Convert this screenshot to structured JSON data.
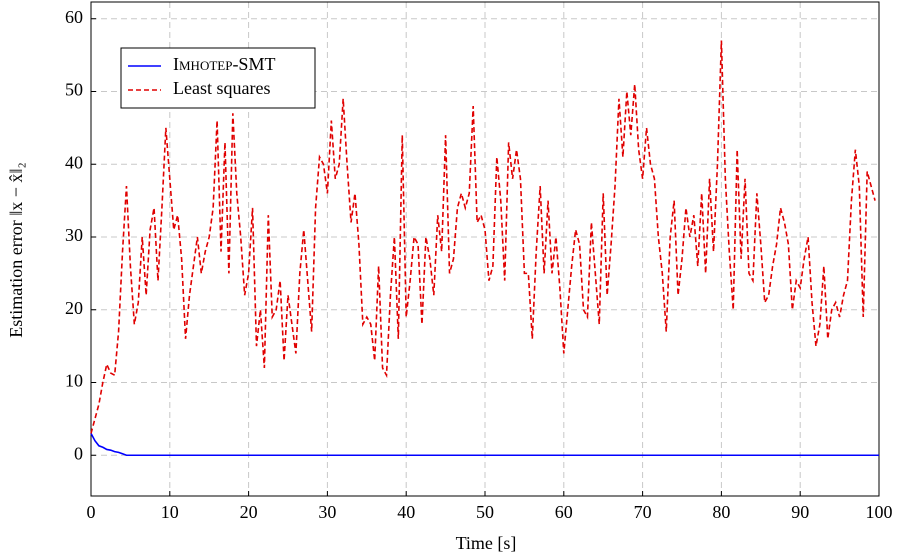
{
  "chart_data": {
    "type": "line",
    "xlabel": "Time [s]",
    "ylabel": "Estimation error ‖x − x̂‖₂",
    "xlim": [
      0,
      100
    ],
    "ylim": [
      -5.6,
      62.3
    ],
    "xticks": [
      0,
      10,
      20,
      30,
      40,
      50,
      60,
      70,
      80,
      90,
      100
    ],
    "yticks": [
      0,
      10,
      20,
      30,
      40,
      50,
      60
    ],
    "grid": true,
    "legend": "upper left",
    "series": [
      {
        "name": "Imhotep-SMT",
        "color": "#0000ff",
        "dash": "solid",
        "x": [
          0,
          0.5,
          1,
          1.5,
          2,
          2.5,
          3,
          3.5,
          4,
          4.5,
          100
        ],
        "values": [
          3,
          2,
          1.3,
          1.1,
          0.8,
          0.7,
          0.5,
          0.4,
          0.2,
          0,
          0
        ]
      },
      {
        "name": "Least squares",
        "color": "#e00000",
        "dash": "dashed",
        "x": [
          0,
          1,
          1.5,
          2,
          2.5,
          3,
          3.5,
          4,
          4.5,
          5,
          5.5,
          6,
          6.5,
          7,
          7.5,
          8,
          8.5,
          9,
          9.5,
          10,
          10.5,
          11,
          11.5,
          12,
          12.5,
          13,
          13.5,
          14,
          14.5,
          15,
          15.5,
          16,
          16.5,
          17,
          17.5,
          18,
          18.5,
          19,
          19.5,
          20,
          20.5,
          21,
          21.5,
          22,
          22.5,
          23,
          23.5,
          24,
          24.5,
          25,
          25.5,
          26,
          26.5,
          27,
          27.5,
          28,
          28.5,
          29,
          29.5,
          30,
          30.5,
          31,
          31.5,
          32,
          32.5,
          33,
          33.5,
          34,
          34.5,
          35,
          35.5,
          36,
          36.5,
          37,
          37.5,
          38,
          38.5,
          39,
          39.5,
          40,
          40.5,
          41,
          41.5,
          42,
          42.5,
          43,
          43.5,
          44,
          44.5,
          45,
          45.5,
          46,
          46.5,
          47,
          47.5,
          48,
          48.5,
          49,
          49.5,
          50,
          50.5,
          51,
          51.5,
          52,
          52.5,
          53,
          53.5,
          54,
          54.5,
          55,
          55.5,
          56,
          56.5,
          57,
          57.5,
          58,
          58.5,
          59,
          59.5,
          60,
          60.5,
          61,
          61.5,
          62,
          62.5,
          63,
          63.5,
          64,
          64.5,
          65,
          65.5,
          66,
          66.5,
          67,
          67.5,
          68,
          68.5,
          69,
          69.5,
          70,
          70.5,
          71,
          71.5,
          72,
          72.5,
          73,
          73.5,
          74,
          74.5,
          75,
          75.5,
          76,
          76.5,
          77,
          77.5,
          78,
          78.5,
          79,
          79.5,
          80,
          80.5,
          81,
          81.5,
          82,
          82.5,
          83,
          83.5,
          84,
          84.5,
          85,
          85.5,
          86,
          86.5,
          87,
          87.5,
          88,
          88.5,
          89,
          89.5,
          90,
          90.5,
          91,
          91.5,
          92,
          92.5,
          93,
          93.5,
          94,
          94.5,
          95,
          95.5,
          96,
          96.5,
          97,
          97.5,
          98,
          98.5,
          99,
          99.5
        ],
        "values": [
          3,
          7,
          10,
          12.5,
          11.3,
          11,
          17,
          28,
          37,
          26,
          18,
          21,
          30,
          22,
          31,
          34,
          24,
          34,
          45,
          38,
          31,
          33,
          27,
          16,
          22,
          26,
          30,
          25,
          28,
          30,
          34,
          46,
          28,
          43,
          25,
          47,
          36,
          30,
          22,
          25,
          34,
          15,
          20,
          12,
          33,
          19,
          20,
          24,
          13,
          22,
          18,
          14,
          25,
          31,
          24,
          17,
          34,
          41,
          40,
          36,
          46,
          38,
          40,
          49,
          40,
          32,
          36,
          29,
          18,
          19,
          18,
          13,
          26,
          12,
          11,
          22,
          30,
          16,
          44,
          19,
          24,
          30,
          29,
          18,
          30,
          27,
          22,
          33,
          28,
          44,
          25,
          27,
          34,
          36,
          34,
          36,
          48,
          32,
          33,
          31,
          24,
          26,
          41,
          35,
          24,
          43,
          38,
          42,
          38,
          25,
          25,
          16,
          28,
          37,
          25,
          35,
          25,
          30,
          23,
          14,
          20,
          26,
          31,
          29,
          20,
          19,
          32,
          25,
          18,
          36,
          22,
          29,
          37,
          49,
          41,
          50,
          44,
          51,
          42,
          38,
          45,
          40,
          38,
          30,
          25,
          17,
          30,
          35,
          22,
          27,
          34,
          30,
          33,
          26,
          36,
          25,
          38,
          28,
          40,
          57,
          38,
          28,
          20,
          42,
          27,
          38,
          25,
          24,
          36,
          29,
          21,
          22,
          26,
          29,
          34,
          32,
          29,
          20,
          24,
          23,
          27,
          30,
          21,
          15,
          18,
          26,
          16,
          20,
          21,
          19,
          22,
          24,
          35,
          42,
          37,
          19,
          39,
          37,
          35
        ]
      }
    ]
  }
}
